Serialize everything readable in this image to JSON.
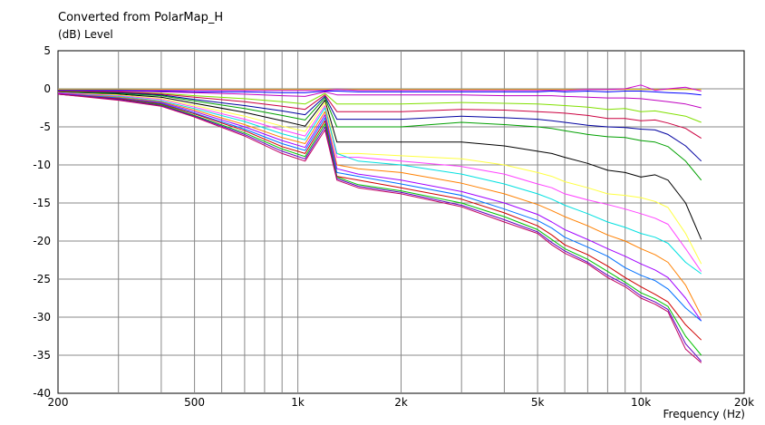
{
  "chart_data": {
    "type": "line",
    "title": "Converted from PolarMap_H",
    "ylabel": "(dB)  Level",
    "xlabel": "Frequency  (Hz)",
    "x_scale": "log",
    "xlim": [
      200,
      20000
    ],
    "ylim": [
      -40,
      5
    ],
    "x_tick_labels": [
      {
        "value": 200,
        "label": "200"
      },
      {
        "value": 500,
        "label": "500"
      },
      {
        "value": 1000,
        "label": "1k"
      },
      {
        "value": 2000,
        "label": "2k"
      },
      {
        "value": 5000,
        "label": "5k"
      },
      {
        "value": 10000,
        "label": "10k"
      },
      {
        "value": 20000,
        "label": "20k"
      }
    ],
    "y_ticks": [
      5,
      0,
      -5,
      -10,
      -15,
      -20,
      -25,
      -30,
      -35,
      -40
    ],
    "grid": true,
    "background": "#ffffff",
    "grid_color": "#888888",
    "x": [
      200,
      300,
      400,
      500,
      700,
      900,
      1050,
      1200,
      1300,
      1500,
      2000,
      3000,
      4000,
      5000,
      5500,
      6000,
      7000,
      8000,
      9000,
      10000,
      11000,
      12000,
      13500,
      15000
    ],
    "series": [
      {
        "color": "#e8c000",
        "values": [
          -0.1,
          -0.1,
          -0.1,
          -0.1,
          -0.1,
          -0.1,
          -0.1,
          -0.1,
          -0.1,
          -0.1,
          -0.1,
          -0.1,
          -0.1,
          -0.1,
          -0.1,
          -0.1,
          -0.1,
          -0.1,
          -0.1,
          -0.1,
          -0.1,
          -0.1,
          -0.1,
          -0.1
        ]
      },
      {
        "color": "#d000d0",
        "values": [
          -0.2,
          -0.2,
          -0.2,
          -0.2,
          -0.2,
          -0.2,
          -0.2,
          -0.2,
          -0.1,
          -0.2,
          -0.2,
          -0.2,
          -0.2,
          -0.2,
          -0.2,
          -0.2,
          -0.1,
          -0.1,
          0.0,
          0.5,
          -0.2,
          0.0,
          0.2,
          -0.3
        ]
      },
      {
        "color": "#0000ff",
        "values": [
          -0.2,
          -0.2,
          -0.3,
          -0.4,
          -0.4,
          -0.5,
          -0.5,
          -0.3,
          -0.3,
          -0.4,
          -0.4,
          -0.4,
          -0.4,
          -0.4,
          -0.3,
          -0.4,
          -0.3,
          -0.4,
          -0.3,
          -0.3,
          -0.4,
          -0.5,
          -0.6,
          -0.8
        ]
      },
      {
        "color": "#c000c0",
        "values": [
          -0.3,
          -0.3,
          -0.4,
          -0.5,
          -0.7,
          -0.9,
          -1.0,
          -0.4,
          -0.8,
          -0.8,
          -0.8,
          -0.8,
          -0.9,
          -0.9,
          -0.9,
          -1.0,
          -1.1,
          -1.2,
          -1.2,
          -1.3,
          -1.5,
          -1.7,
          -2.0,
          -2.5
        ]
      },
      {
        "color": "#80e000",
        "values": [
          -0.3,
          -0.4,
          -0.6,
          -0.9,
          -1.3,
          -1.7,
          -2.0,
          -0.6,
          -2.0,
          -2.0,
          -2.0,
          -1.8,
          -1.9,
          -2.0,
          -2.1,
          -2.2,
          -2.4,
          -2.7,
          -2.6,
          -3.0,
          -2.9,
          -3.2,
          -3.6,
          -4.4
        ]
      },
      {
        "color": "#cc0040",
        "values": [
          -0.3,
          -0.4,
          -0.7,
          -1.1,
          -1.7,
          -2.3,
          -2.7,
          -0.8,
          -3.0,
          -3.0,
          -3.0,
          -2.7,
          -2.8,
          -3.0,
          -3.1,
          -3.2,
          -3.5,
          -3.9,
          -3.9,
          -4.2,
          -4.1,
          -4.5,
          -5.2,
          -6.5
        ]
      },
      {
        "color": "#0000a0",
        "values": [
          -0.4,
          -0.5,
          -0.8,
          -1.4,
          -2.2,
          -2.9,
          -3.4,
          -1.0,
          -4.0,
          -4.0,
          -4.0,
          -3.6,
          -3.8,
          -4.0,
          -4.2,
          -4.4,
          -4.8,
          -5.0,
          -5.1,
          -5.3,
          -5.4,
          -6.0,
          -7.5,
          -9.5
        ]
      },
      {
        "color": "#00a000",
        "values": [
          -0.4,
          -0.6,
          -0.9,
          -1.6,
          -2.6,
          -3.5,
          -4.1,
          -1.2,
          -5.0,
          -5.0,
          -5.0,
          -4.4,
          -4.7,
          -5.0,
          -5.2,
          -5.5,
          -6.0,
          -6.3,
          -6.4,
          -6.8,
          -7.0,
          -7.6,
          -9.5,
          -12.0
        ]
      },
      {
        "color": "#000000",
        "values": [
          -0.5,
          -0.7,
          -1.1,
          -1.9,
          -3.1,
          -4.2,
          -4.9,
          -1.5,
          -7.0,
          -7.0,
          -7.0,
          -7.0,
          -7.5,
          -8.2,
          -8.5,
          -9.0,
          -9.8,
          -10.7,
          -11.0,
          -11.6,
          -11.3,
          -12.0,
          -15.0,
          -19.8
        ]
      },
      {
        "color": "#ffff40",
        "values": [
          -0.5,
          -0.8,
          -1.3,
          -2.2,
          -3.6,
          -4.9,
          -5.6,
          -1.8,
          -8.5,
          -8.5,
          -8.8,
          -9.2,
          -10.0,
          -11.0,
          -11.5,
          -12.2,
          -13.0,
          -13.8,
          -14.0,
          -14.3,
          -14.8,
          -15.6,
          -19.0,
          -23.0
        ]
      },
      {
        "color": "#ff40ff",
        "values": [
          -0.5,
          -0.9,
          -1.4,
          -2.4,
          -4.0,
          -5.4,
          -6.2,
          -2.2,
          -9.0,
          -9.0,
          -9.5,
          -10.2,
          -11.2,
          -12.5,
          -13.0,
          -13.8,
          -14.6,
          -15.2,
          -15.8,
          -16.4,
          -17.0,
          -17.8,
          -21.0,
          -24.0
        ]
      },
      {
        "color": "#00e0e0",
        "values": [
          -0.6,
          -1.0,
          -1.6,
          -2.6,
          -4.3,
          -5.9,
          -6.7,
          -2.5,
          -8.5,
          -9.5,
          -10.0,
          -11.2,
          -12.5,
          -13.8,
          -14.5,
          -15.3,
          -16.4,
          -17.5,
          -18.2,
          -19.0,
          -19.5,
          -20.3,
          -22.8,
          -24.3
        ]
      },
      {
        "color": "#ff8000",
        "values": [
          -0.6,
          -1.1,
          -1.7,
          -2.8,
          -4.7,
          -6.4,
          -7.2,
          -3.0,
          -10.0,
          -10.5,
          -11.0,
          -12.4,
          -13.8,
          -15.2,
          -16.0,
          -16.8,
          -18.0,
          -19.2,
          -20.0,
          -21.0,
          -21.8,
          -22.8,
          -25.8,
          -29.8
        ]
      },
      {
        "color": "#a000ff",
        "values": [
          -0.6,
          -1.2,
          -1.8,
          -3.0,
          -5.0,
          -6.8,
          -7.7,
          -3.4,
          -10.5,
          -11.2,
          -12.0,
          -13.5,
          -15.0,
          -16.5,
          -17.5,
          -18.5,
          -19.8,
          -21.0,
          -22.0,
          -23.0,
          -23.8,
          -24.8,
          -27.5,
          -30.5
        ]
      },
      {
        "color": "#0070ff",
        "values": [
          -0.7,
          -1.2,
          -1.9,
          -3.2,
          -5.3,
          -7.2,
          -8.1,
          -3.8,
          -11.0,
          -11.5,
          -12.5,
          -14.0,
          -15.8,
          -17.3,
          -18.3,
          -19.5,
          -20.8,
          -22.0,
          -23.5,
          -24.5,
          -25.2,
          -26.3,
          -28.8,
          -30.5
        ]
      },
      {
        "color": "#d00000",
        "values": [
          -0.7,
          -1.3,
          -2.0,
          -3.3,
          -5.5,
          -7.6,
          -8.5,
          -4.2,
          -11.5,
          -12.0,
          -13.0,
          -14.5,
          -16.3,
          -18.0,
          -19.2,
          -20.5,
          -21.8,
          -23.3,
          -24.8,
          -26.0,
          -27.0,
          -28.0,
          -31.0,
          -33.0
        ]
      },
      {
        "color": "#00c000",
        "values": [
          -0.7,
          -1.4,
          -2.1,
          -3.5,
          -5.8,
          -7.9,
          -8.9,
          -4.6,
          -11.6,
          -12.6,
          -13.4,
          -15.0,
          -16.8,
          -18.5,
          -19.8,
          -21.0,
          -22.4,
          -24.0,
          -25.4,
          -26.8,
          -27.6,
          -28.6,
          -32.5,
          -35.0
        ]
      },
      {
        "color": "#6000c0",
        "values": [
          -0.7,
          -1.4,
          -2.2,
          -3.6,
          -6.0,
          -8.2,
          -9.2,
          -5.0,
          -11.8,
          -12.8,
          -13.6,
          -15.3,
          -17.2,
          -18.8,
          -20.2,
          -21.3,
          -22.8,
          -24.5,
          -25.7,
          -27.2,
          -28.0,
          -29.0,
          -33.5,
          -35.8
        ]
      },
      {
        "color": "#c00060",
        "values": [
          -0.7,
          -1.5,
          -2.3,
          -3.7,
          -6.2,
          -8.5,
          -9.5,
          -5.4,
          -12.0,
          -13.0,
          -13.8,
          -15.5,
          -17.5,
          -19.0,
          -20.5,
          -21.6,
          -23.0,
          -24.8,
          -26.0,
          -27.5,
          -28.3,
          -29.3,
          -34.2,
          -36.0
        ]
      }
    ]
  }
}
